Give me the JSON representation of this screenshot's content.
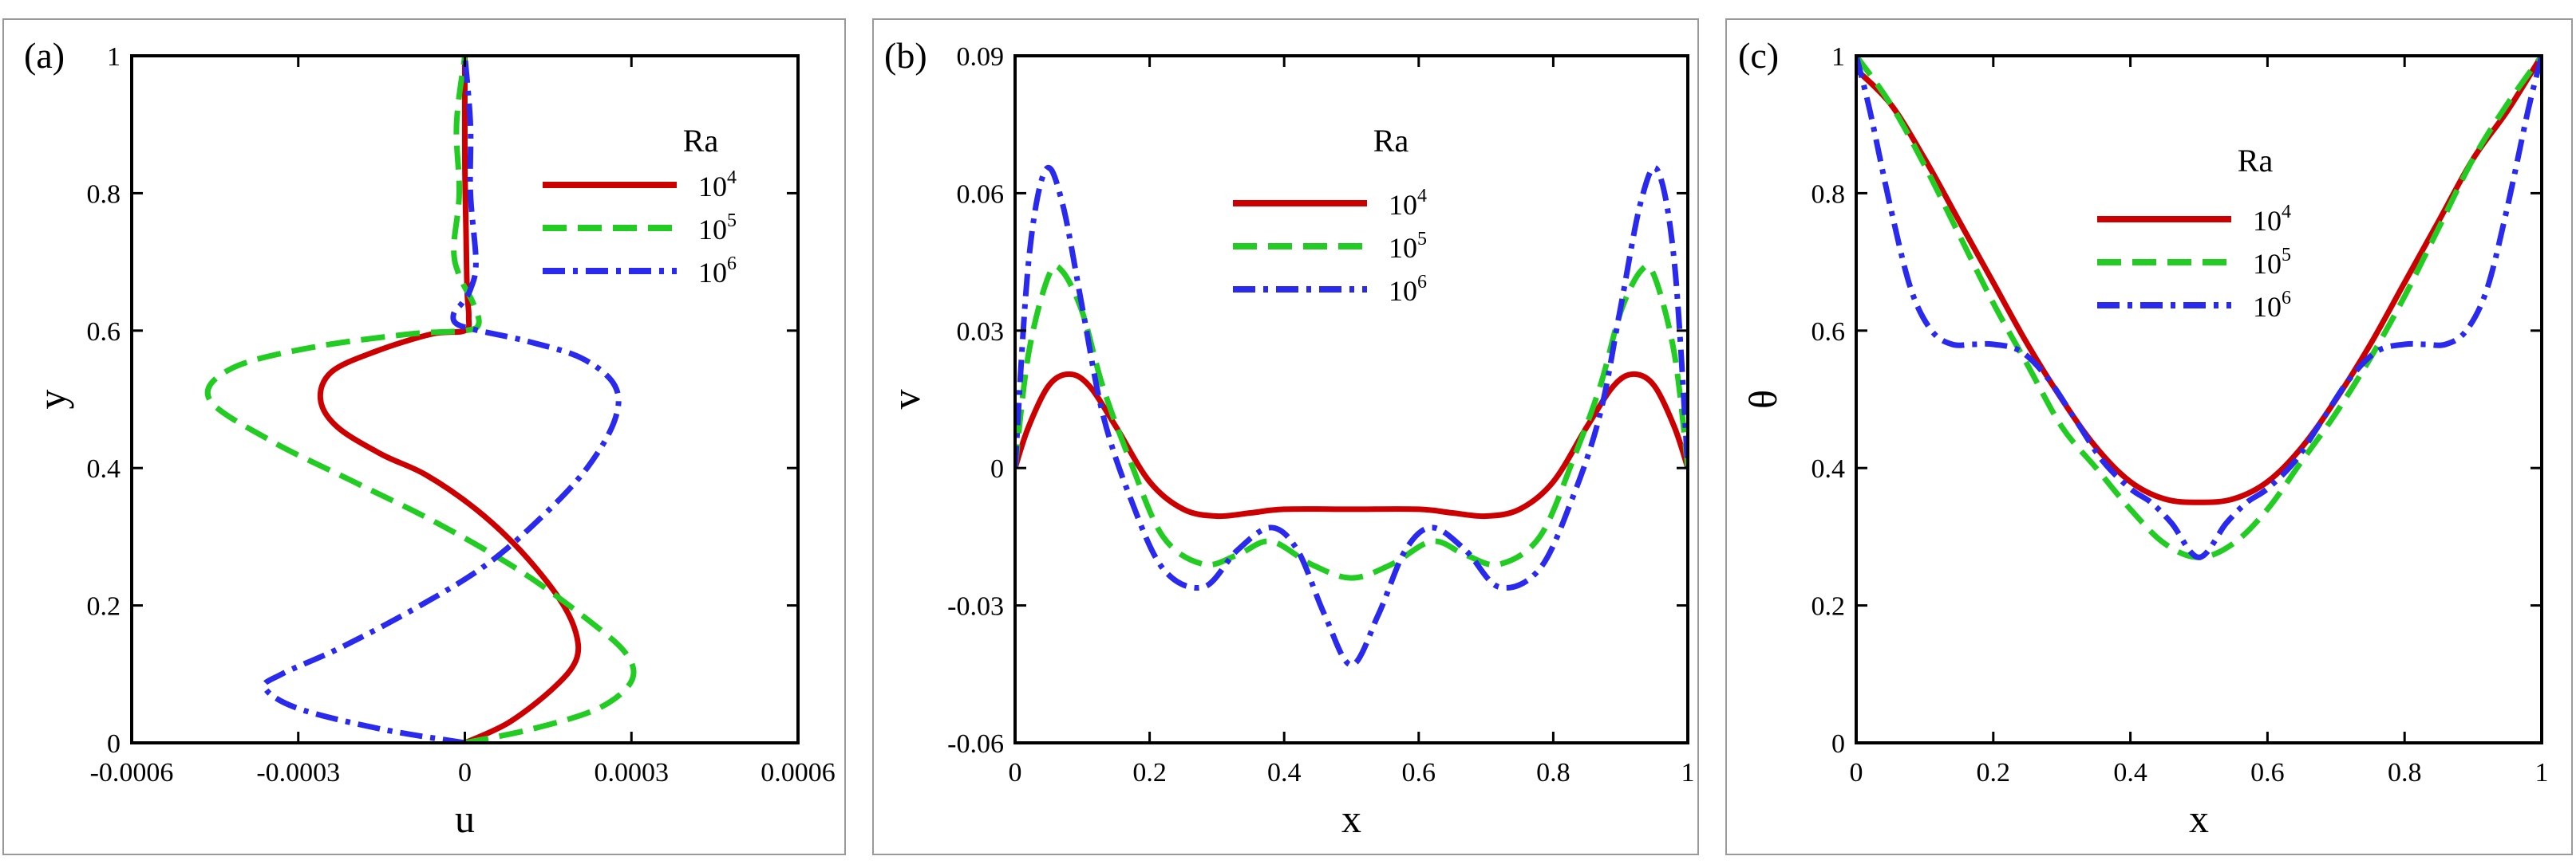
{
  "colors": {
    "ra1e4": "#cc0000",
    "ra1e5": "#22cc22",
    "ra1e6": "#2a2aee"
  },
  "legend": {
    "title": "Ra",
    "entries": [
      {
        "base": "10",
        "exp": "4",
        "color": "#cc0000",
        "dash": "solid"
      },
      {
        "base": "10",
        "exp": "5",
        "color": "#22cc22",
        "dash": "dashed"
      },
      {
        "base": "10",
        "exp": "6",
        "color": "#2a2aee",
        "dash": "dashdot"
      }
    ]
  },
  "chart_data": [
    {
      "type": "line",
      "label": "(a)",
      "xlabel": "u",
      "ylabel": "y",
      "xlim": [
        -0.0006,
        0.0006
      ],
      "ylim": [
        0,
        1
      ],
      "xticks": [
        "-0.0006",
        "-0.0003",
        "0",
        "0.0003",
        "0.0006"
      ],
      "yticks": [
        "0",
        "0.2",
        "0.4",
        "0.6",
        "0.8",
        "1"
      ],
      "legend_position": "top-right",
      "series": [
        {
          "name": "Ra=10^4",
          "points": [
            [
              0,
              0
            ],
            [
              8e-05,
              0.03
            ],
            [
              0.00016,
              0.08
            ],
            [
              0.0002,
              0.12
            ],
            [
              0.0002,
              0.16
            ],
            [
              0.00017,
              0.21
            ],
            [
              0.0001,
              0.28
            ],
            [
              2e-05,
              0.34
            ],
            [
              -7e-05,
              0.39
            ],
            [
              -0.00015,
              0.42
            ],
            [
              -0.00023,
              0.46
            ],
            [
              -0.00026,
              0.5
            ],
            [
              -0.00024,
              0.54
            ],
            [
              -0.00016,
              0.57
            ],
            [
              -6e-05,
              0.595
            ],
            [
              0,
              0.6
            ],
            [
              7e-06,
              0.62
            ],
            [
              4e-06,
              0.66
            ],
            [
              2e-06,
              0.75
            ],
            [
              0,
              0.85
            ],
            [
              0,
              1
            ]
          ]
        },
        {
          "name": "Ra=10^5",
          "points": [
            [
              0,
              0
            ],
            [
              0.00012,
              0.02
            ],
            [
              0.00024,
              0.05
            ],
            [
              0.0003,
              0.09
            ],
            [
              0.00029,
              0.13
            ],
            [
              0.00022,
              0.18
            ],
            [
              0.0001,
              0.25
            ],
            [
              -5e-05,
              0.32
            ],
            [
              -0.0002,
              0.38
            ],
            [
              -0.00035,
              0.44
            ],
            [
              -0.00046,
              0.5
            ],
            [
              -0.00042,
              0.545
            ],
            [
              -0.00028,
              0.575
            ],
            [
              -0.0001,
              0.595
            ],
            [
              0,
              0.6
            ],
            [
              2.5e-05,
              0.61
            ],
            [
              1.5e-05,
              0.64
            ],
            [
              -1e-05,
              0.68
            ],
            [
              -2e-05,
              0.72
            ],
            [
              -1e-05,
              0.8
            ],
            [
              -1.5e-05,
              0.9
            ],
            [
              0,
              1
            ]
          ]
        },
        {
          "name": "Ra=10^6",
          "points": [
            [
              0,
              0
            ],
            [
              -0.00015,
              0.02
            ],
            [
              -0.0003,
              0.05
            ],
            [
              -0.00036,
              0.08
            ],
            [
              -0.00033,
              0.1
            ],
            [
              -0.00022,
              0.14
            ],
            [
              -8e-05,
              0.2
            ],
            [
              4e-05,
              0.26
            ],
            [
              0.00014,
              0.33
            ],
            [
              0.00022,
              0.4
            ],
            [
              0.00027,
              0.47
            ],
            [
              0.00027,
              0.52
            ],
            [
              0.00021,
              0.56
            ],
            [
              0.00011,
              0.585
            ],
            [
              2.5e-05,
              0.6
            ],
            [
              -1.5e-05,
              0.61
            ],
            [
              -2e-05,
              0.625
            ],
            [
              -5e-06,
              0.64
            ],
            [
              1e-05,
              0.66
            ],
            [
              2e-05,
              0.7
            ],
            [
              1e-05,
              0.8
            ],
            [
              1e-05,
              0.9
            ],
            [
              0,
              1
            ]
          ]
        }
      ]
    },
    {
      "type": "line",
      "label": "(b)",
      "xlabel": "x",
      "ylabel": "v",
      "xlim": [
        0,
        1
      ],
      "ylim": [
        -0.06,
        0.09
      ],
      "xticks": [
        "0",
        "0.2",
        "0.4",
        "0.6",
        "0.8",
        "1"
      ],
      "yticks": [
        "-0.06",
        "-0.03",
        "0",
        "0.03",
        "0.06",
        "0.09"
      ],
      "legend_position": "top-center",
      "series": [
        {
          "name": "Ra=10^4",
          "points": [
            [
              0,
              0
            ],
            [
              0.02,
              0.009
            ],
            [
              0.05,
              0.018
            ],
            [
              0.08,
              0.0205
            ],
            [
              0.11,
              0.018
            ],
            [
              0.15,
              0.009
            ],
            [
              0.2,
              -0.003
            ],
            [
              0.25,
              -0.009
            ],
            [
              0.3,
              -0.0105
            ],
            [
              0.35,
              -0.0098
            ],
            [
              0.4,
              -0.009
            ],
            [
              0.5,
              -0.009
            ],
            [
              0.6,
              -0.009
            ],
            [
              0.65,
              -0.0098
            ],
            [
              0.7,
              -0.0105
            ],
            [
              0.75,
              -0.009
            ],
            [
              0.8,
              -0.003
            ],
            [
              0.85,
              0.009
            ],
            [
              0.89,
              0.018
            ],
            [
              0.92,
              0.0205
            ],
            [
              0.95,
              0.018
            ],
            [
              0.98,
              0.009
            ],
            [
              1,
              0
            ]
          ]
        },
        {
          "name": "Ra=10^5",
          "points": [
            [
              0,
              0
            ],
            [
              0.02,
              0.025
            ],
            [
              0.05,
              0.042
            ],
            [
              0.07,
              0.043
            ],
            [
              0.1,
              0.034
            ],
            [
              0.13,
              0.018
            ],
            [
              0.17,
              0.002
            ],
            [
              0.22,
              -0.015
            ],
            [
              0.28,
              -0.021
            ],
            [
              0.33,
              -0.019
            ],
            [
              0.38,
              -0.016
            ],
            [
              0.44,
              -0.021
            ],
            [
              0.5,
              -0.024
            ],
            [
              0.56,
              -0.021
            ],
            [
              0.62,
              -0.016
            ],
            [
              0.67,
              -0.019
            ],
            [
              0.72,
              -0.021
            ],
            [
              0.78,
              -0.015
            ],
            [
              0.83,
              0.002
            ],
            [
              0.87,
              0.018
            ],
            [
              0.9,
              0.034
            ],
            [
              0.93,
              0.043
            ],
            [
              0.95,
              0.042
            ],
            [
              0.98,
              0.025
            ],
            [
              1,
              0
            ]
          ]
        },
        {
          "name": "Ra=10^6",
          "points": [
            [
              0,
              0
            ],
            [
              0.02,
              0.045
            ],
            [
              0.045,
              0.065
            ],
            [
              0.07,
              0.058
            ],
            [
              0.1,
              0.035
            ],
            [
              0.13,
              0.012
            ],
            [
              0.17,
              -0.006
            ],
            [
              0.22,
              -0.022
            ],
            [
              0.28,
              -0.026
            ],
            [
              0.33,
              -0.018
            ],
            [
              0.38,
              -0.013
            ],
            [
              0.42,
              -0.018
            ],
            [
              0.46,
              -0.032
            ],
            [
              0.5,
              -0.043
            ],
            [
              0.54,
              -0.032
            ],
            [
              0.58,
              -0.018
            ],
            [
              0.62,
              -0.013
            ],
            [
              0.67,
              -0.018
            ],
            [
              0.72,
              -0.026
            ],
            [
              0.78,
              -0.022
            ],
            [
              0.83,
              -0.006
            ],
            [
              0.87,
              0.012
            ],
            [
              0.9,
              0.035
            ],
            [
              0.93,
              0.058
            ],
            [
              0.955,
              0.065
            ],
            [
              0.98,
              0.045
            ],
            [
              1,
              0
            ]
          ]
        }
      ]
    },
    {
      "type": "line",
      "label": "(c)",
      "xlabel": "x",
      "ylabel": "θ",
      "xlim": [
        0,
        1
      ],
      "ylim": [
        0,
        1
      ],
      "xticks": [
        "0",
        "0.2",
        "0.4",
        "0.6",
        "0.8",
        "1"
      ],
      "yticks": [
        "0",
        "0.2",
        "0.4",
        "0.6",
        "0.8",
        "1"
      ],
      "legend_position": "top-center",
      "series": [
        {
          "name": "Ra=10^4",
          "points": [
            [
              0,
              0.98
            ],
            [
              0.05,
              0.93
            ],
            [
              0.1,
              0.85
            ],
            [
              0.15,
              0.76
            ],
            [
              0.2,
              0.67
            ],
            [
              0.25,
              0.58
            ],
            [
              0.3,
              0.5
            ],
            [
              0.35,
              0.43
            ],
            [
              0.4,
              0.38
            ],
            [
              0.45,
              0.355
            ],
            [
              0.5,
              0.35
            ],
            [
              0.55,
              0.355
            ],
            [
              0.6,
              0.38
            ],
            [
              0.65,
              0.43
            ],
            [
              0.7,
              0.5
            ],
            [
              0.75,
              0.58
            ],
            [
              0.8,
              0.67
            ],
            [
              0.85,
              0.76
            ],
            [
              0.9,
              0.85
            ],
            [
              0.95,
              0.92
            ],
            [
              1,
              1
            ]
          ]
        },
        {
          "name": "Ra=10^5",
          "points": [
            [
              0,
              1
            ],
            [
              0.05,
              0.93
            ],
            [
              0.1,
              0.84
            ],
            [
              0.15,
              0.74
            ],
            [
              0.2,
              0.64
            ],
            [
              0.25,
              0.55
            ],
            [
              0.3,
              0.46
            ],
            [
              0.35,
              0.4
            ],
            [
              0.4,
              0.34
            ],
            [
              0.45,
              0.29
            ],
            [
              0.5,
              0.27
            ],
            [
              0.55,
              0.29
            ],
            [
              0.6,
              0.34
            ],
            [
              0.65,
              0.41
            ],
            [
              0.7,
              0.48
            ],
            [
              0.75,
              0.56
            ],
            [
              0.8,
              0.65
            ],
            [
              0.85,
              0.75
            ],
            [
              0.9,
              0.85
            ],
            [
              0.95,
              0.93
            ],
            [
              1,
              1
            ]
          ]
        },
        {
          "name": "Ra=10^6",
          "points": [
            [
              0,
              1
            ],
            [
              0.02,
              0.92
            ],
            [
              0.05,
              0.78
            ],
            [
              0.08,
              0.66
            ],
            [
              0.11,
              0.6
            ],
            [
              0.14,
              0.58
            ],
            [
              0.17,
              0.58
            ],
            [
              0.2,
              0.58
            ],
            [
              0.24,
              0.57
            ],
            [
              0.28,
              0.53
            ],
            [
              0.32,
              0.47
            ],
            [
              0.36,
              0.41
            ],
            [
              0.4,
              0.37
            ],
            [
              0.43,
              0.35
            ],
            [
              0.46,
              0.32
            ],
            [
              0.5,
              0.27
            ],
            [
              0.54,
              0.32
            ],
            [
              0.57,
              0.35
            ],
            [
              0.6,
              0.37
            ],
            [
              0.64,
              0.41
            ],
            [
              0.68,
              0.47
            ],
            [
              0.72,
              0.53
            ],
            [
              0.76,
              0.57
            ],
            [
              0.8,
              0.58
            ],
            [
              0.83,
              0.58
            ],
            [
              0.86,
              0.58
            ],
            [
              0.89,
              0.6
            ],
            [
              0.92,
              0.66
            ],
            [
              0.95,
              0.78
            ],
            [
              0.98,
              0.92
            ],
            [
              1,
              1
            ]
          ]
        }
      ]
    }
  ]
}
